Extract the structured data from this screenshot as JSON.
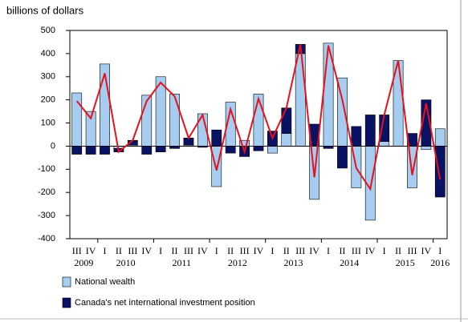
{
  "chart_data": {
    "type": "bar",
    "stacked": true,
    "y_label": "billions of dollars",
    "categories": [
      "III",
      "IV",
      "I",
      "II",
      "III",
      "IV",
      "I",
      "II",
      "III",
      "IV",
      "I",
      "II",
      "III",
      "IV",
      "I",
      "II",
      "III",
      "IV",
      "I",
      "II",
      "III",
      "IV",
      "I",
      "II",
      "III",
      "IV",
      "I"
    ],
    "years": [
      "2009",
      "2010",
      "2011",
      "2012",
      "2013",
      "2014",
      "2015",
      "2016"
    ],
    "series": [
      {
        "name": "National wealth",
        "color": "#a6cdf0",
        "values": [
          230,
          150,
          355,
          -10,
          5,
          220,
          300,
          225,
          5,
          140,
          -175,
          190,
          25,
          225,
          -30,
          55,
          400,
          -230,
          445,
          295,
          -180,
          -320,
          20,
          370,
          -180,
          -15,
          75
        ]
      },
      {
        "name": "Canada's net international investment position",
        "color": "#0a1264",
        "values": [
          -35,
          -35,
          -35,
          -15,
          20,
          -35,
          -25,
          -10,
          30,
          -5,
          70,
          -30,
          -45,
          -20,
          65,
          110,
          40,
          95,
          -10,
          -95,
          85,
          135,
          115,
          0,
          55,
          200,
          -220
        ]
      },
      {
        "type": "line",
        "color": "#e8101a",
        "values": [
          195,
          120,
          315,
          -25,
          25,
          195,
          275,
          215,
          35,
          135,
          -105,
          160,
          -25,
          205,
          35,
          165,
          440,
          -135,
          435,
          200,
          -95,
          -185,
          135,
          370,
          -125,
          185,
          -145
        ]
      }
    ],
    "ylim": [
      -400,
      500
    ],
    "yticks": [
      -400,
      -300,
      -200,
      -100,
      0,
      100,
      200,
      300,
      400,
      500
    ]
  }
}
